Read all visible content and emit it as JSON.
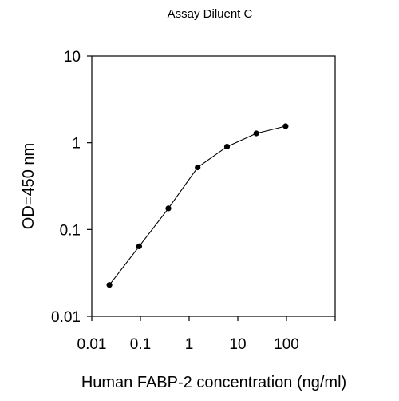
{
  "chart_data": {
    "type": "line",
    "title": "Assay Diluent C",
    "xlabel": "Human FABP-2 concentration (ng/ml)",
    "ylabel": "OD=450 nm",
    "x_scale": "log",
    "y_scale": "log",
    "xlim": [
      0.01,
      1000
    ],
    "ylim": [
      0.01,
      10
    ],
    "x_ticks": [
      0.01,
      0.1,
      1,
      10,
      100
    ],
    "x_tick_labels": [
      "0.01",
      "0.1",
      "1",
      "10",
      "100"
    ],
    "y_ticks": [
      0.01,
      0.1,
      1,
      10
    ],
    "y_tick_labels": [
      "0.01",
      "0.1",
      "1",
      "10"
    ],
    "grid": false,
    "series": [
      {
        "x": [
          0.023,
          0.094,
          0.375,
          1.5,
          6.0,
          24,
          96
        ],
        "y": [
          0.023,
          0.064,
          0.175,
          0.52,
          0.9,
          1.28,
          1.55
        ]
      }
    ]
  }
}
